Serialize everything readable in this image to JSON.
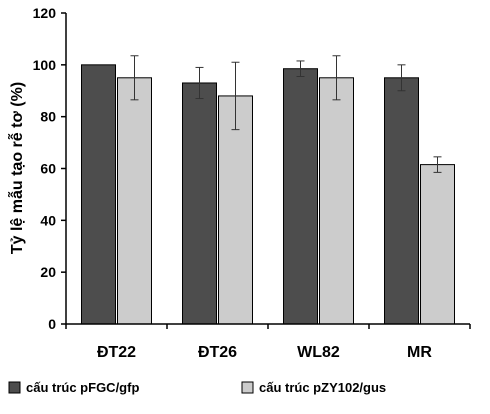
{
  "chart_data": {
    "type": "bar",
    "title": "",
    "xlabel": "",
    "ylabel": "Tỷ lệ mẫu tạo rễ tơ (%)",
    "ylim": [
      0,
      120
    ],
    "yticks": [
      0,
      20,
      40,
      60,
      80,
      100,
      120
    ],
    "grid": false,
    "legend_position": "bottom",
    "categories": [
      "ĐT22",
      "ĐT26",
      "WL82",
      "MR"
    ],
    "series": [
      {
        "name": "cấu trúc pFGC/gfp",
        "color": "#4d4d4d",
        "values": [
          100,
          93,
          98.5,
          95
        ],
        "errors": [
          0,
          6,
          3,
          5
        ]
      },
      {
        "name": "cấu trúc pZY102/gus",
        "color": "#cccccc",
        "values": [
          95,
          88,
          95,
          61.5
        ],
        "errors": [
          8.5,
          13,
          8.5,
          3
        ]
      }
    ]
  }
}
